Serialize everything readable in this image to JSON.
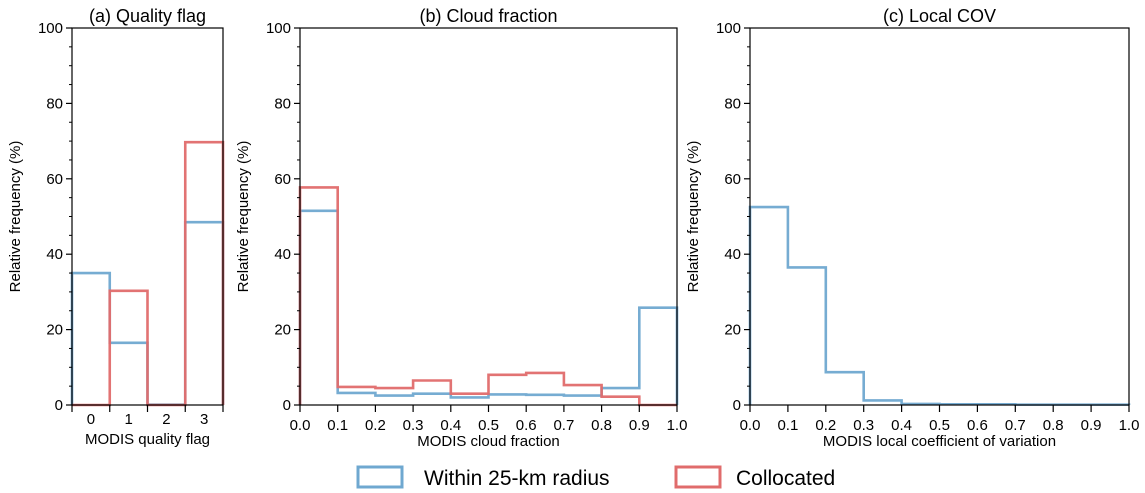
{
  "colors": {
    "within": "#6fa8d0",
    "collocated": "#e06c6c"
  },
  "legend": {
    "within_label": "Within 25-km radius",
    "collocated_label": "Collocated"
  },
  "chart_data": [
    {
      "type": "step-histogram",
      "title": "(a) Quality flag",
      "xlabel": "MODIS quality flag",
      "ylabel": "Relative frequency (%)",
      "ylim": [
        0,
        100
      ],
      "yticks": [
        "0",
        "20",
        "40",
        "60",
        "80",
        "100"
      ],
      "xlim": [
        -0.5,
        3.5
      ],
      "xticklabels": [
        "0",
        "1",
        "2",
        "3"
      ],
      "bin_edges": [
        -0.5,
        0.5,
        1.5,
        2.5,
        3.5
      ],
      "series": [
        {
          "name": "Within 25-km radius",
          "color": "within",
          "values": [
            35.0,
            16.5,
            0.1,
            48.5
          ]
        },
        {
          "name": "Collocated",
          "color": "collocated",
          "values": [
            0.0,
            30.3,
            0.0,
            69.7
          ]
        }
      ]
    },
    {
      "type": "step-histogram",
      "title": "(b) Cloud fraction",
      "xlabel": "MODIS cloud fraction",
      "ylabel": "Relative frequency (%)",
      "ylim": [
        0,
        100
      ],
      "yticks": [
        "0",
        "20",
        "40",
        "60",
        "80",
        "100"
      ],
      "xlim": [
        0,
        1
      ],
      "xticklabels": [
        "0.0",
        "0.1",
        "0.2",
        "0.3",
        "0.4",
        "0.5",
        "0.6",
        "0.7",
        "0.8",
        "0.9",
        "1.0"
      ],
      "bin_edges": [
        0.0,
        0.1,
        0.2,
        0.3,
        0.4,
        0.5,
        0.6,
        0.7,
        0.8,
        0.9,
        1.0
      ],
      "series": [
        {
          "name": "Within 25-km radius",
          "color": "within",
          "values": [
            51.5,
            3.2,
            2.5,
            3.0,
            2.0,
            2.8,
            2.7,
            2.5,
            4.5,
            25.8
          ]
        },
        {
          "name": "Collocated",
          "color": "collocated",
          "values": [
            57.7,
            4.8,
            4.5,
            6.5,
            3.0,
            8.0,
            8.5,
            5.3,
            2.2,
            0.0
          ]
        }
      ]
    },
    {
      "type": "step-histogram",
      "title": "(c) Local COV",
      "xlabel": "MODIS local coefficient of variation",
      "ylabel": "Relative frequency (%)",
      "ylim": [
        0,
        100
      ],
      "yticks": [
        "0",
        "20",
        "40",
        "60",
        "80",
        "100"
      ],
      "xlim": [
        0,
        1
      ],
      "xticklabels": [
        "0.0",
        "0.1",
        "0.2",
        "0.3",
        "0.4",
        "0.5",
        "0.6",
        "0.7",
        "0.8",
        "0.9",
        "1.0"
      ],
      "bin_edges": [
        0.0,
        0.1,
        0.2,
        0.3,
        0.4,
        0.5,
        0.6,
        0.7,
        0.8,
        0.9,
        1.0
      ],
      "series": [
        {
          "name": "Within 25-km radius",
          "color": "within",
          "values": [
            52.5,
            36.5,
            8.7,
            1.2,
            0.3,
            0.2,
            0.2,
            0.1,
            0.1,
            0.1
          ]
        }
      ]
    }
  ]
}
